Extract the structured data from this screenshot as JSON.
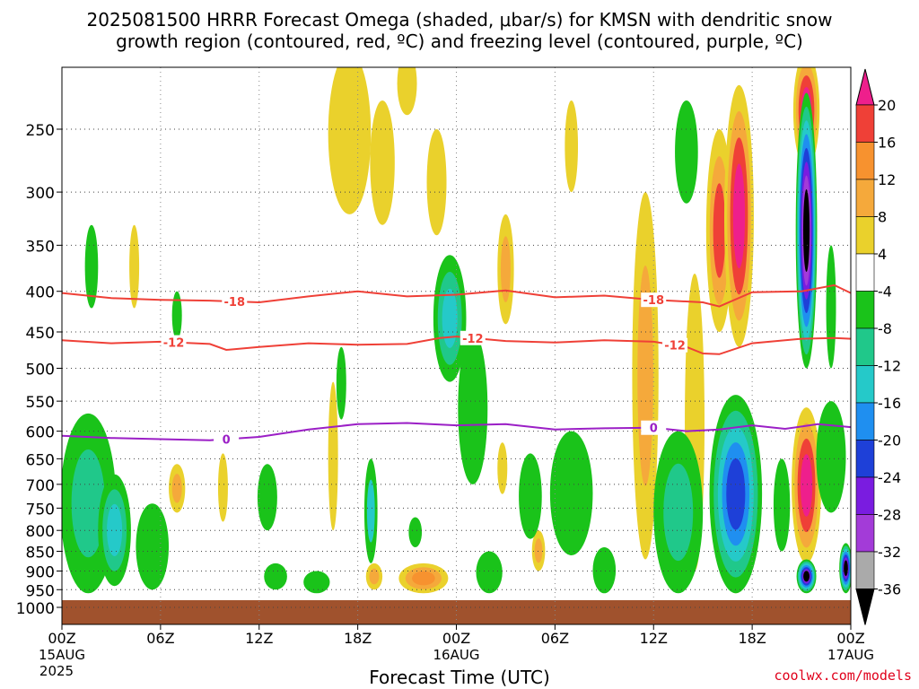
{
  "title_line1": "2025081500 HRRR Forecast Omega (shaded, μbar/s) for KMSN with dendritic snow",
  "title_line2": "growth region (contoured, red, ºC) and freezing level (contoured, purple, ºC)",
  "credit": "coolwx.com/models",
  "chart_data": {
    "type": "heatmap",
    "xlabel": "Forecast Time (UTC)",
    "x_ticks": [
      {
        "hour": 0,
        "label": "00Z",
        "sub1": "15AUG",
        "sub2": "2025"
      },
      {
        "hour": 6,
        "label": "06Z"
      },
      {
        "hour": 12,
        "label": "12Z"
      },
      {
        "hour": 18,
        "label": "18Z"
      },
      {
        "hour": 24,
        "label": "00Z",
        "sub1": "16AUG"
      },
      {
        "hour": 30,
        "label": "06Z"
      },
      {
        "hour": 36,
        "label": "12Z"
      },
      {
        "hour": 42,
        "label": "18Z"
      },
      {
        "hour": 48,
        "label": "00Z",
        "sub1": "17AUG"
      }
    ],
    "xlim": [
      0,
      48
    ],
    "ylabel": "",
    "y_ticks": [
      250,
      300,
      350,
      400,
      450,
      500,
      550,
      600,
      650,
      700,
      750,
      800,
      850,
      900,
      950,
      1000
    ],
    "ylim": [
      1050,
      200
    ],
    "y_scale": "log-pressure",
    "grid": true,
    "colorbar": {
      "labels": [
        "20",
        "16",
        "12",
        "8",
        "4",
        "-4",
        "-8",
        "-12",
        "-16",
        "-20",
        "-24",
        "-28",
        "-32",
        "-36"
      ],
      "levels": [
        20,
        16,
        12,
        8,
        4,
        -4,
        -8,
        -12,
        -16,
        -20,
        -24,
        -28,
        -32,
        -36
      ],
      "colors": {
        "gt20": "#ee1f8c",
        "16_20": "#ef4037",
        "12_16": "#f7922f",
        "8_12": "#f5a93b",
        "4_8": "#ead12c",
        "m4_4": "#ffffff",
        "m8_m4": "#1ac31a",
        "m12_m8": "#20c88a",
        "m16_m12": "#25c9c9",
        "m20_m16": "#1f8ff0",
        "m24_m20": "#1e40d8",
        "m28_m24": "#7a1ce0",
        "m32_m28": "#a33bd8",
        "m36_m32": "#aaaaaa",
        "lt36": "#000000"
      }
    },
    "ground_color": "#a0522d",
    "contours": [
      {
        "label": "-18",
        "color": "#ef4037",
        "points": [
          [
            0,
            402
          ],
          [
            3,
            408
          ],
          [
            6,
            410
          ],
          [
            9,
            411
          ],
          [
            12,
            413
          ],
          [
            15,
            406
          ],
          [
            18,
            400
          ],
          [
            21,
            406
          ],
          [
            24,
            404
          ],
          [
            27,
            399
          ],
          [
            30,
            407
          ],
          [
            33,
            405
          ],
          [
            36,
            410
          ],
          [
            39,
            413
          ],
          [
            40,
            418
          ],
          [
            42,
            401
          ],
          [
            45,
            400
          ],
          [
            47,
            393
          ],
          [
            48,
            402
          ]
        ],
        "label_hours": [
          10.5,
          36
        ]
      },
      {
        "label": "-12",
        "color": "#ef4037",
        "points": [
          [
            0,
            461
          ],
          [
            3,
            465
          ],
          [
            6,
            463
          ],
          [
            9,
            466
          ],
          [
            10,
            474
          ],
          [
            12,
            470
          ],
          [
            15,
            465
          ],
          [
            18,
            467
          ],
          [
            21,
            466
          ],
          [
            23,
            458
          ],
          [
            24,
            456
          ],
          [
            27,
            462
          ],
          [
            30,
            464
          ],
          [
            33,
            461
          ],
          [
            36,
            463
          ],
          [
            38,
            470
          ],
          [
            39,
            479
          ],
          [
            40,
            480
          ],
          [
            42,
            465
          ],
          [
            45,
            459
          ],
          [
            47,
            458
          ],
          [
            48,
            459
          ]
        ],
        "label_hours": [
          6.8,
          25,
          37.3
        ]
      },
      {
        "label": "0",
        "color": "#9b1fc6",
        "points": [
          [
            0,
            608
          ],
          [
            3,
            612
          ],
          [
            6,
            614
          ],
          [
            9,
            616
          ],
          [
            12,
            610
          ],
          [
            15,
            597
          ],
          [
            18,
            588
          ],
          [
            21,
            586
          ],
          [
            24,
            590
          ],
          [
            27,
            588
          ],
          [
            30,
            597
          ],
          [
            33,
            595
          ],
          [
            36,
            594
          ],
          [
            38,
            600
          ],
          [
            40,
            597
          ],
          [
            42,
            590
          ],
          [
            44,
            596
          ],
          [
            46,
            588
          ],
          [
            48,
            593
          ]
        ],
        "label_hours": [
          10,
          36
        ]
      }
    ]
  }
}
